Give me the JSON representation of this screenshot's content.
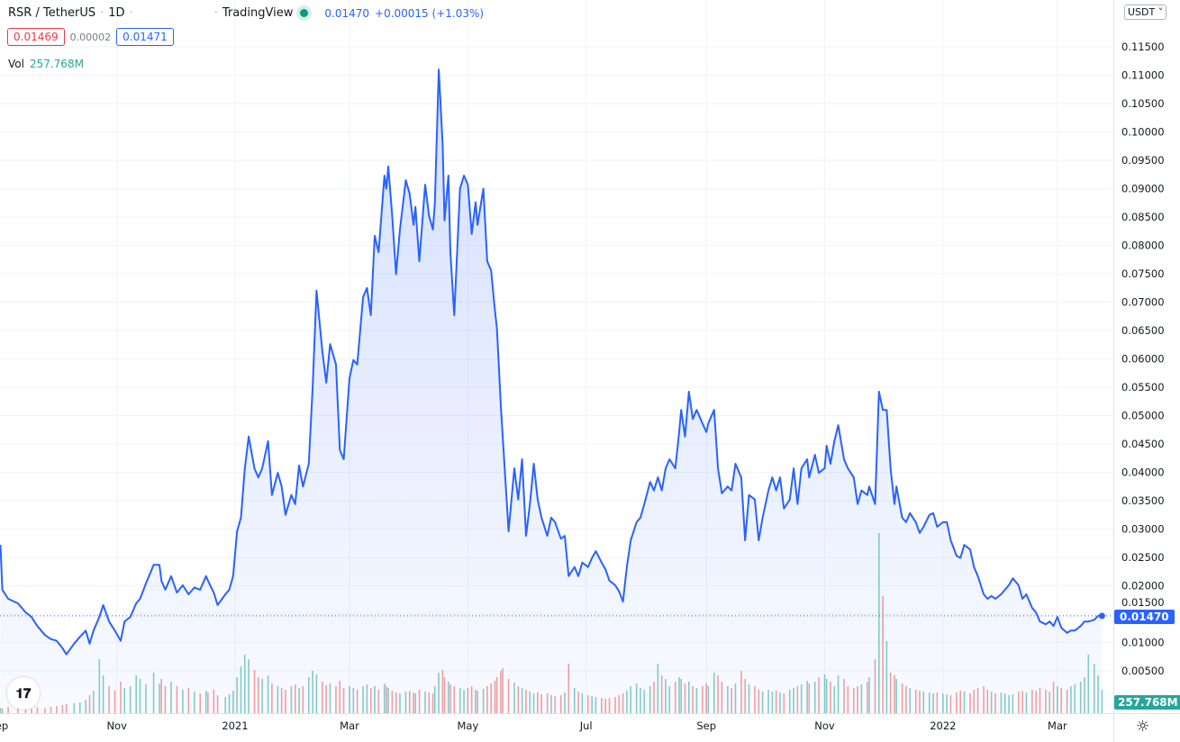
{
  "header": {
    "symbol": "RSR / TetherUS",
    "interval": "1D",
    "source": "TradingView",
    "last": "0.01470",
    "change": "+0.00015 (+1.03%)",
    "bid": "0.01469",
    "spread": "0.00002",
    "ask": "0.01471",
    "vol_label": "Vol",
    "vol_value": "257.768M"
  },
  "currency_button": "USDT",
  "current_price_label": "0.01470",
  "current_volume_label": "257.768M",
  "logo_text": "TV",
  "colors": {
    "line": "#2962ff",
    "up_volume": "#26a69a",
    "down_volume": "#ef5350",
    "grid": "#f0f3fa"
  },
  "chart_data": {
    "type": "area",
    "xlabel": "",
    "ylabel": "",
    "ylim": [
      0,
      0.12
    ],
    "grid": true,
    "y_ticks": [
      "0.00500",
      "0.01000",
      "0.01500",
      "0.02000",
      "0.02500",
      "0.03000",
      "0.03500",
      "0.04000",
      "0.04500",
      "0.05000",
      "0.05500",
      "0.06000",
      "0.06500",
      "0.07000",
      "0.07500",
      "0.08000",
      "0.08500",
      "0.09000",
      "0.09500",
      "0.10000",
      "0.10500",
      "0.11000",
      "0.11500"
    ],
    "x_ticks": [
      {
        "label": "Sep",
        "date": "2020-09-01"
      },
      {
        "label": "Nov",
        "date": "2020-11-01"
      },
      {
        "label": "2021",
        "date": "2021-01-01"
      },
      {
        "label": "Mar",
        "date": "2021-03-01"
      },
      {
        "label": "May",
        "date": "2021-05-01"
      },
      {
        "label": "Jul",
        "date": "2021-07-01"
      },
      {
        "label": "Sep",
        "date": "2021-09-01"
      },
      {
        "label": "Nov",
        "date": "2021-11-01"
      },
      {
        "label": "2022",
        "date": "2022-01-01"
      },
      {
        "label": "Mar",
        "date": "2022-03-01"
      }
    ],
    "last_price": 0.0147,
    "x": [
      "2020-09-02",
      "2020-09-03",
      "2020-09-06",
      "2020-09-11",
      "2020-09-15",
      "2020-09-18",
      "2020-09-21",
      "2020-09-25",
      "2020-09-28",
      "2020-10-01",
      "2020-10-04",
      "2020-10-06",
      "2020-10-10",
      "2020-10-13",
      "2020-10-16",
      "2020-10-18",
      "2020-10-20",
      "2020-10-23",
      "2020-10-25",
      "2020-10-28",
      "2020-10-31",
      "2020-11-03",
      "2020-11-05",
      "2020-11-08",
      "2020-11-11",
      "2020-11-13",
      "2020-11-16",
      "2020-11-20",
      "2020-11-23",
      "2020-11-24",
      "2020-11-26",
      "2020-11-29",
      "2020-12-02",
      "2020-12-05",
      "2020-12-08",
      "2020-12-11",
      "2020-12-14",
      "2020-12-17",
      "2020-12-18",
      "2020-12-21",
      "2020-12-23",
      "2020-12-27",
      "2020-12-29",
      "2020-12-31",
      "2021-01-02",
      "2021-01-04",
      "2021-01-06",
      "2021-01-08",
      "2021-01-11",
      "2021-01-13",
      "2021-01-15",
      "2021-01-18",
      "2021-01-20",
      "2021-01-23",
      "2021-01-25",
      "2021-01-27",
      "2021-01-30",
      "2021-02-01",
      "2021-02-03",
      "2021-02-05",
      "2021-02-08",
      "2021-02-10",
      "2021-02-12",
      "2021-02-15",
      "2021-02-17",
      "2021-02-19",
      "2021-02-22",
      "2021-02-24",
      "2021-02-26",
      "2021-03-01",
      "2021-03-03",
      "2021-03-05",
      "2021-03-08",
      "2021-03-10",
      "2021-03-12",
      "2021-03-14",
      "2021-03-16",
      "2021-03-19",
      "2021-03-20",
      "2021-03-21",
      "2021-03-23",
      "2021-03-25",
      "2021-03-27",
      "2021-03-30",
      "2021-04-01",
      "2021-04-03",
      "2021-04-04",
      "2021-04-06",
      "2021-04-09",
      "2021-04-11",
      "2021-04-13",
      "2021-04-14",
      "2021-04-16",
      "2021-04-18",
      "2021-04-19",
      "2021-04-21",
      "2021-04-22",
      "2021-04-24",
      "2021-04-27",
      "2021-04-29",
      "2021-05-01",
      "2021-05-03",
      "2021-05-05",
      "2021-05-06",
      "2021-05-09",
      "2021-05-11",
      "2021-05-13",
      "2021-05-15",
      "2021-05-16",
      "2021-05-18",
      "2021-05-19",
      "2021-05-22",
      "2021-05-25",
      "2021-05-27",
      "2021-05-29",
      "2021-05-31",
      "2021-06-02",
      "2021-06-04",
      "2021-06-06",
      "2021-06-08",
      "2021-06-11",
      "2021-06-13",
      "2021-06-15",
      "2021-06-18",
      "2021-06-20",
      "2021-06-22",
      "2021-06-25",
      "2021-06-27",
      "2021-06-29",
      "2021-07-02",
      "2021-07-04",
      "2021-07-06",
      "2021-07-09",
      "2021-07-11",
      "2021-07-13",
      "2021-07-16",
      "2021-07-18",
      "2021-07-20",
      "2021-07-22",
      "2021-07-24",
      "2021-07-27",
      "2021-07-29",
      "2021-07-31",
      "2021-08-03",
      "2021-08-05",
      "2021-08-07",
      "2021-08-09",
      "2021-08-11",
      "2021-08-13",
      "2021-08-16",
      "2021-08-18",
      "2021-08-19",
      "2021-08-21",
      "2021-08-23",
      "2021-08-25",
      "2021-08-27",
      "2021-08-30",
      "2021-09-01",
      "2021-09-02",
      "2021-09-05",
      "2021-09-07",
      "2021-09-09",
      "2021-09-12",
      "2021-09-14",
      "2021-09-16",
      "2021-09-19",
      "2021-09-21",
      "2021-09-23",
      "2021-09-26",
      "2021-09-28",
      "2021-09-30",
      "2021-10-03",
      "2021-10-05",
      "2021-10-07",
      "2021-10-09",
      "2021-10-11",
      "2021-10-14",
      "2021-10-16",
      "2021-10-18",
      "2021-10-20",
      "2021-10-23",
      "2021-10-24",
      "2021-10-27",
      "2021-10-29",
      "2021-11-01",
      "2021-11-02",
      "2021-11-04",
      "2021-11-06",
      "2021-11-08",
      "2021-11-11",
      "2021-11-13",
      "2021-11-16",
      "2021-11-18",
      "2021-11-20",
      "2021-11-23",
      "2021-11-24",
      "2021-11-27",
      "2021-11-29",
      "2021-12-01",
      "2021-12-03",
      "2021-12-05",
      "2021-12-07",
      "2021-12-08",
      "2021-12-11",
      "2021-12-13",
      "2021-12-15",
      "2021-12-18",
      "2021-12-20",
      "2021-12-22",
      "2021-12-25",
      "2021-12-27",
      "2021-12-29",
      "2022-01-01",
      "2022-01-03",
      "2022-01-05",
      "2022-01-08",
      "2022-01-10",
      "2022-01-12",
      "2022-01-15",
      "2022-01-17",
      "2022-01-19",
      "2022-01-22",
      "2022-01-24",
      "2022-01-26",
      "2022-01-28",
      "2022-01-31",
      "2022-02-02",
      "2022-02-04",
      "2022-02-06",
      "2022-02-09",
      "2022-02-11",
      "2022-02-13",
      "2022-02-16",
      "2022-02-18",
      "2022-02-20",
      "2022-02-23",
      "2022-02-25",
      "2022-02-27",
      "2022-03-01",
      "2022-03-03",
      "2022-03-06",
      "2022-03-08",
      "2022-03-10",
      "2022-03-13",
      "2022-03-15",
      "2022-03-17",
      "2022-03-20",
      "2022-03-22",
      "2022-03-24"
    ],
    "close": [
      0.0272,
      0.0193,
      0.0177,
      0.0169,
      0.0153,
      0.0145,
      0.0129,
      0.0113,
      0.0106,
      0.0103,
      0.009,
      0.0079,
      0.0098,
      0.011,
      0.0121,
      0.0098,
      0.0121,
      0.0145,
      0.0166,
      0.0137,
      0.0121,
      0.0103,
      0.0137,
      0.0145,
      0.0169,
      0.0177,
      0.0204,
      0.0237,
      0.0237,
      0.0209,
      0.0193,
      0.0217,
      0.0188,
      0.0201,
      0.0185,
      0.0197,
      0.0193,
      0.0217,
      0.0209,
      0.0188,
      0.0166,
      0.0185,
      0.0193,
      0.0217,
      0.0296,
      0.032,
      0.0407,
      0.0463,
      0.0407,
      0.0391,
      0.0407,
      0.0455,
      0.036,
      0.0399,
      0.0375,
      0.0325,
      0.036,
      0.0344,
      0.0412,
      0.0375,
      0.0415,
      0.055,
      0.072,
      0.0613,
      0.0558,
      0.0626,
      0.059,
      0.0439,
      0.0423,
      0.0566,
      0.0598,
      0.059,
      0.0709,
      0.0725,
      0.0677,
      0.0817,
      0.0788,
      0.0923,
      0.09,
      0.0939,
      0.0852,
      0.0749,
      0.0828,
      0.0915,
      0.0891,
      0.0836,
      0.0868,
      0.0772,
      0.0907,
      0.0852,
      0.0828,
      0.0876,
      0.111,
      0.0979,
      0.0844,
      0.0923,
      0.0788,
      0.0677,
      0.09,
      0.0923,
      0.0907,
      0.082,
      0.0876,
      0.0836,
      0.09,
      0.0772,
      0.0756,
      0.0685,
      0.0653,
      0.0518,
      0.0463,
      0.0296,
      0.0407,
      0.0352,
      0.0423,
      0.0288,
      0.0344,
      0.0415,
      0.0352,
      0.032,
      0.0288,
      0.032,
      0.0312,
      0.0283,
      0.0288,
      0.0217,
      0.0233,
      0.0217,
      0.0241,
      0.0233,
      0.0249,
      0.0261,
      0.0241,
      0.0229,
      0.0209,
      0.0201,
      0.019,
      0.0172,
      0.0233,
      0.028,
      0.0312,
      0.032,
      0.0344,
      0.0383,
      0.0368,
      0.0391,
      0.0368,
      0.0407,
      0.0423,
      0.0407,
      0.0471,
      0.051,
      0.0463,
      0.0542,
      0.0494,
      0.051,
      0.0486,
      0.0471,
      0.0486,
      0.051,
      0.0407,
      0.0363,
      0.0375,
      0.0368,
      0.0415,
      0.0391,
      0.028,
      0.036,
      0.0352,
      0.028,
      0.032,
      0.0368,
      0.0391,
      0.0368,
      0.0391,
      0.0336,
      0.0352,
      0.0407,
      0.0344,
      0.0407,
      0.0423,
      0.0391,
      0.0431,
      0.0399,
      0.0407,
      0.0447,
      0.0415,
      0.0455,
      0.0483,
      0.0423,
      0.0407,
      0.0391,
      0.0344,
      0.0368,
      0.036,
      0.0375,
      0.0344,
      0.0542,
      0.051,
      0.051,
      0.0407,
      0.0344,
      0.0375,
      0.032,
      0.0312,
      0.0328,
      0.0312,
      0.0293,
      0.0304,
      0.0325,
      0.0328,
      0.0304,
      0.0312,
      0.0312,
      0.028,
      0.0253,
      0.0249,
      0.0272,
      0.0264,
      0.0233,
      0.0217,
      0.0185,
      0.0177,
      0.0182,
      0.0177,
      0.0185,
      0.0193,
      0.0201,
      0.0213,
      0.0201,
      0.0177,
      0.0185,
      0.0161,
      0.0153,
      0.0137,
      0.0132,
      0.0137,
      0.0129,
      0.0145,
      0.0126,
      0.0117,
      0.0121,
      0.0121,
      0.0129,
      0.0137,
      0.0137,
      0.014,
      0.0147,
      0.0147
    ],
    "volume_unit": "M",
    "volume": [
      60,
      50,
      70,
      55,
      60,
      50,
      65,
      55,
      70,
      80,
      90,
      100,
      110,
      120,
      150,
      200,
      250,
      600,
      420,
      300,
      250,
      350,
      280,
      300,
      420,
      380,
      320,
      450,
      330,
      380,
      300,
      350,
      300,
      260,
      280,
      240,
      220,
      250,
      230,
      260,
      200,
      180,
      210,
      250,
      400,
      520,
      650,
      600,
      480,
      400,
      380,
      420,
      330,
      300,
      280,
      260,
      300,
      320,
      280,
      300,
      400,
      470,
      430,
      350,
      310,
      330,
      300,
      360,
      280,
      300,
      280,
      260,
      300,
      320,
      280,
      300,
      260,
      330,
      300,
      280,
      250,
      230,
      220,
      240,
      250,
      230,
      220,
      260,
      240,
      230,
      220,
      300,
      450,
      480,
      400,
      350,
      320,
      300,
      280,
      260,
      280,
      300,
      260,
      250,
      270,
      300,
      330,
      360,
      400,
      470,
      500,
      380,
      340,
      300,
      280,
      260,
      240,
      220,
      230,
      210,
      220,
      200,
      190,
      200,
      230,
      550,
      280,
      240,
      220,
      200,
      190,
      180,
      170,
      160,
      170,
      180,
      200,
      220,
      250,
      300,
      330,
      280,
      260,
      300,
      350,
      550,
      420,
      380,
      300,
      350,
      400,
      380,
      330,
      350,
      300,
      280,
      300,
      330,
      300,
      450,
      420,
      350,
      300,
      280,
      330,
      470,
      380,
      320,
      300,
      260,
      240,
      260,
      240,
      250,
      230,
      220,
      260,
      280,
      300,
      320,
      360,
      330,
      350,
      400,
      430,
      380,
      350,
      300,
      420,
      380,
      300,
      280,
      300,
      320,
      350,
      400,
      600,
      2050,
      1300,
      800,
      450,
      420,
      380,
      330,
      300,
      280,
      260,
      250,
      240,
      230,
      220,
      230,
      220,
      210,
      200,
      230,
      250,
      240,
      220,
      260,
      280,
      300,
      260,
      240,
      220,
      230,
      220,
      200,
      210,
      240,
      250,
      230,
      260,
      250,
      280,
      260,
      240,
      350,
      300,
      280,
      260,
      300,
      320,
      350,
      400,
      650,
      550,
      420,
      257.768
    ]
  }
}
